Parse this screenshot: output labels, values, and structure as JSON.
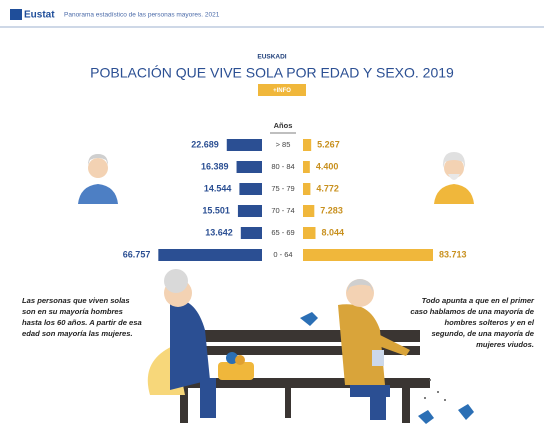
{
  "header": {
    "brand": "Eustat",
    "subtitle": "Panorama estadístico de las personas mayores. 2021"
  },
  "chart_data": {
    "type": "butterfly",
    "kicker": "EUSKADI",
    "title": "POBLACIÓN QUE VIVE SOLA POR EDAD Y SEXO. 2019",
    "button": "+INFO",
    "axis_label": "Años",
    "categories": [
      "> 85",
      "80 - 84",
      "75 - 79",
      "70 - 74",
      "65 - 69",
      "0 - 64"
    ],
    "series": [
      {
        "color": "#2b4f93",
        "label_color": "#2b4f93",
        "values": [
          22689,
          16389,
          14544,
          15501,
          13642,
          66757
        ],
        "value_labels": [
          "22.689",
          "16.389",
          "14.544",
          "15.501",
          "13.642",
          "66.757"
        ]
      },
      {
        "color": "#f0b73b",
        "label_color": "#c8901e",
        "values": [
          5267,
          4400,
          4772,
          7283,
          8044,
          83713
        ],
        "value_labels": [
          "5.267",
          "4.400",
          "4.772",
          "7.283",
          "8.044",
          "83.713"
        ]
      }
    ],
    "annotations": [
      "Las personas que viven solas son en su mayoría hombres hasta los 60 años. A partir de esa edad son mayoría las mujeres.",
      "Todo apunta a que en el primer caso hablamos de una mayoría de hombres solteros y en el segundo, de una mayoría de mujeres viudos."
    ]
  }
}
